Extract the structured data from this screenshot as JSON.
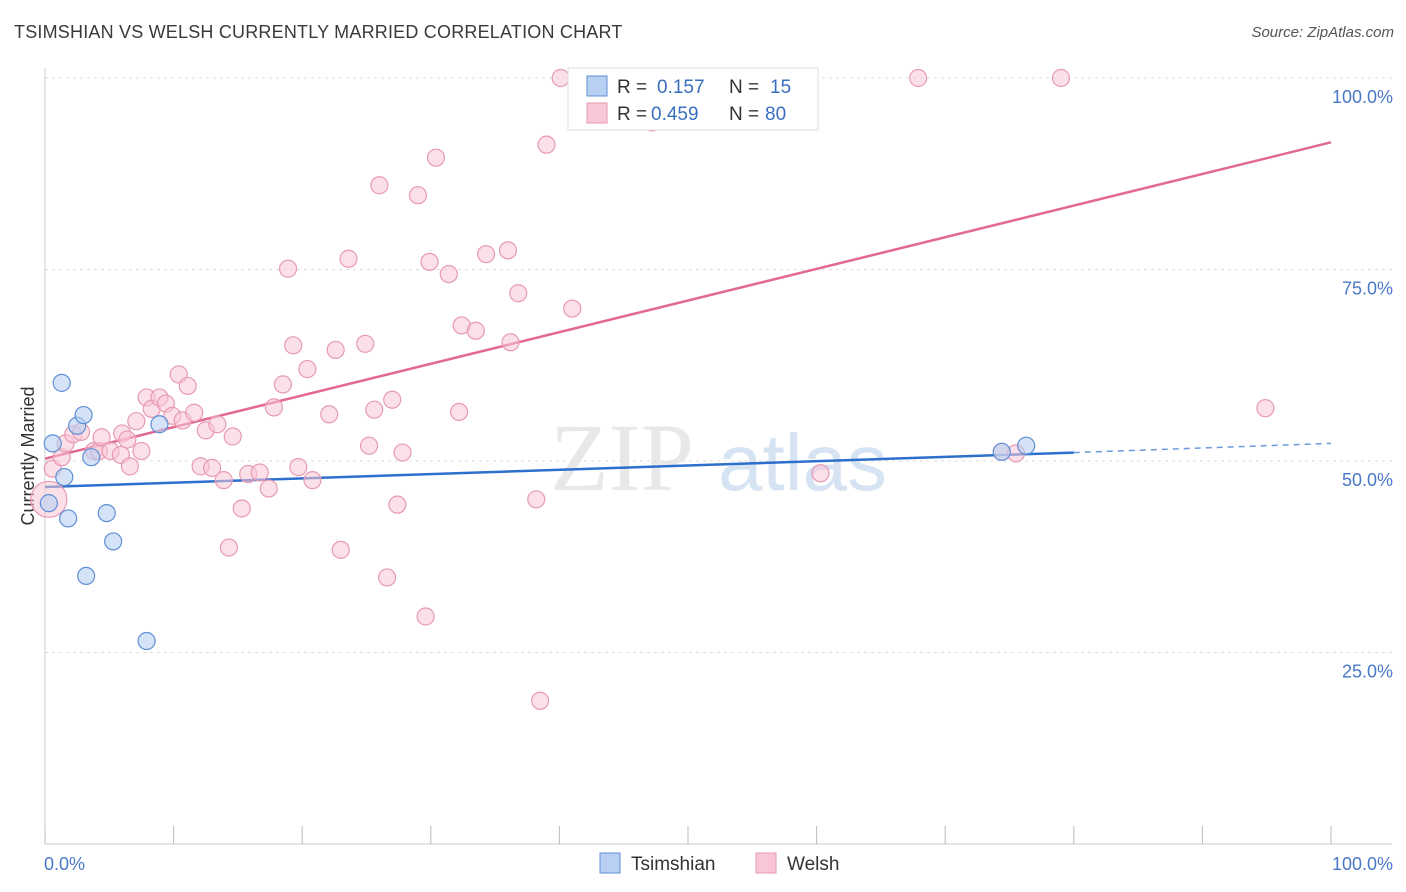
{
  "title": "TSIMSHIAN VS WELSH CURRENTLY MARRIED CORRELATION CHART",
  "source": "Source: ZipAtlas.com",
  "colors": {
    "tsimshian_fill": "#b8d0f2",
    "tsimshian_stroke": "#5f8fd6",
    "tsimshian_line": "#2d6fcc",
    "welsh_fill": "#f9c6d6",
    "welsh_stroke": "#e79ab3",
    "welsh_line": "#e26a92",
    "axis_label": "#4a78c8",
    "grid": "#dddddd"
  },
  "legend": {
    "r_label": "R =",
    "n_label": "N =",
    "tsimshian": {
      "r": "0.157",
      "n": "15"
    },
    "welsh": {
      "r": "0.459",
      "n": "80"
    }
  },
  "bottom_legend": [
    "Tsimshian",
    "Welsh"
  ],
  "watermark": {
    "zip": "ZIP",
    "atlas": "atlas"
  },
  "chart_data": {
    "type": "scatter",
    "ylabel": "Currently Married",
    "xlim": [
      0,
      100
    ],
    "ylim": [
      0,
      100
    ],
    "x_ticks_labels": [
      "0.0%",
      "100.0%"
    ],
    "y_ticks": [
      25,
      50,
      75,
      100
    ],
    "y_tick_labels": [
      "25.0%",
      "50.0%",
      "75.0%",
      "100.0%"
    ],
    "series": [
      {
        "name": "Tsimshian",
        "points": [
          [
            0.3,
            44.5
          ],
          [
            0.6,
            52.3
          ],
          [
            1.3,
            60.2
          ],
          [
            1.5,
            47.9
          ],
          [
            1.8,
            42.5
          ],
          [
            2.5,
            54.6
          ],
          [
            3.0,
            56.0
          ],
          [
            3.2,
            35.0
          ],
          [
            3.6,
            50.5
          ],
          [
            4.8,
            43.2
          ],
          [
            5.3,
            39.5
          ],
          [
            7.9,
            26.5
          ],
          [
            8.9,
            54.8
          ],
          [
            74.4,
            51.2
          ],
          [
            76.3,
            52.0
          ]
        ],
        "trend": {
          "x": [
            0,
            80
          ],
          "y": [
            46.6,
            51.1
          ]
        },
        "trend_dashed": {
          "x": [
            80,
            100
          ],
          "y": [
            51.1,
            52.3
          ]
        }
      },
      {
        "name": "Welsh",
        "points": [
          [
            0.3,
            45.0
          ],
          [
            0.6,
            49.0
          ],
          [
            1.3,
            50.5
          ],
          [
            1.6,
            52.3
          ],
          [
            2.2,
            53.5
          ],
          [
            2.8,
            53.8
          ],
          [
            3.8,
            51.3
          ],
          [
            4.2,
            51.3
          ],
          [
            4.4,
            53.1
          ],
          [
            5.1,
            51.3
          ],
          [
            5.9,
            50.8
          ],
          [
            6.0,
            53.6
          ],
          [
            6.4,
            52.8
          ],
          [
            6.6,
            49.3
          ],
          [
            7.1,
            55.2
          ],
          [
            7.5,
            51.3
          ],
          [
            7.9,
            58.3
          ],
          [
            8.3,
            56.8
          ],
          [
            8.9,
            58.3
          ],
          [
            9.4,
            57.5
          ],
          [
            9.9,
            55.9
          ],
          [
            10.4,
            61.3
          ],
          [
            10.7,
            55.3
          ],
          [
            11.1,
            59.8
          ],
          [
            11.6,
            56.3
          ],
          [
            12.1,
            49.3
          ],
          [
            12.5,
            54.0
          ],
          [
            13.0,
            49.1
          ],
          [
            13.4,
            54.8
          ],
          [
            13.9,
            47.5
          ],
          [
            14.3,
            38.7
          ],
          [
            14.6,
            53.2
          ],
          [
            15.3,
            43.8
          ],
          [
            15.8,
            48.3
          ],
          [
            16.7,
            48.5
          ],
          [
            17.4,
            46.4
          ],
          [
            17.8,
            57.0
          ],
          [
            18.5,
            60.0
          ],
          [
            18.9,
            75.1
          ],
          [
            19.3,
            65.1
          ],
          [
            19.7,
            49.2
          ],
          [
            20.4,
            62.0
          ],
          [
            20.8,
            47.5
          ],
          [
            22.1,
            56.1
          ],
          [
            22.6,
            64.5
          ],
          [
            23.0,
            38.4
          ],
          [
            23.6,
            76.4
          ],
          [
            24.9,
            65.3
          ],
          [
            25.2,
            52.0
          ],
          [
            25.6,
            56.7
          ],
          [
            26.0,
            86.0
          ],
          [
            26.6,
            34.8
          ],
          [
            27.0,
            58.0
          ],
          [
            27.4,
            44.3
          ],
          [
            27.8,
            51.1
          ],
          [
            29.0,
            84.7
          ],
          [
            29.6,
            29.7
          ],
          [
            29.9,
            76.0
          ],
          [
            30.4,
            89.6
          ],
          [
            31.4,
            74.4
          ],
          [
            32.2,
            56.4
          ],
          [
            32.4,
            67.7
          ],
          [
            33.5,
            67.0
          ],
          [
            34.3,
            77.0
          ],
          [
            36.0,
            77.5
          ],
          [
            36.2,
            65.5
          ],
          [
            36.8,
            71.9
          ],
          [
            38.2,
            45.0
          ],
          [
            38.5,
            18.7
          ],
          [
            39.0,
            91.3
          ],
          [
            40.1,
            100.0
          ],
          [
            41.0,
            69.9
          ],
          [
            47.8,
            100.0
          ],
          [
            47.2,
            94.2
          ],
          [
            60.3,
            48.4
          ],
          [
            67.9,
            100.0
          ],
          [
            74.4,
            51.2
          ],
          [
            75.5,
            51.0
          ],
          [
            79.0,
            100.0
          ],
          [
            94.9,
            56.9
          ]
        ],
        "trend": {
          "x": [
            0,
            100
          ],
          "y": [
            50.3,
            91.6
          ]
        }
      }
    ]
  }
}
